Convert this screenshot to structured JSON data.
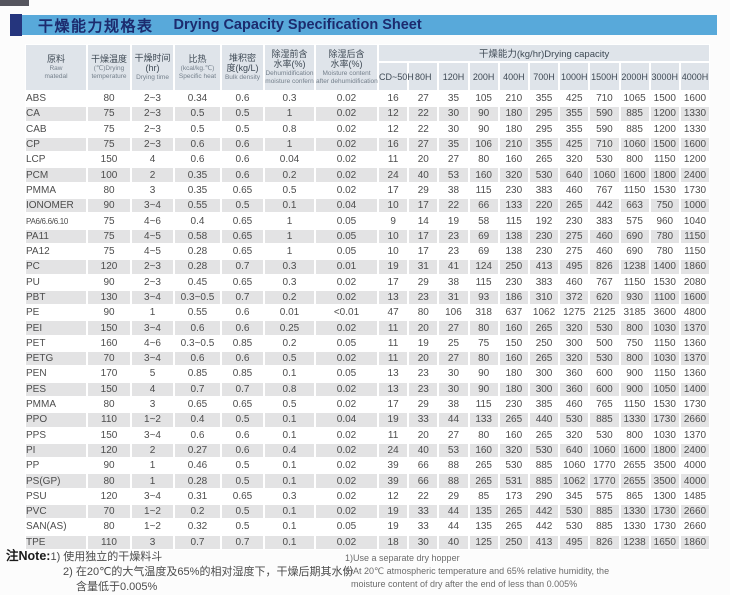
{
  "title": {
    "zh": "干燥能力规格表",
    "en": "Drying Capacity Specification Sheet"
  },
  "colors": {
    "title_bar_blue": "#58a9da",
    "title_block_navy": "#25357d",
    "title_text_navy": "#1c2b6e",
    "header_bg": "#dfe4ea",
    "row_stripe": "#e3e3e4",
    "body_text": "#4d4d4d"
  },
  "table": {
    "columns": {
      "material": {
        "zh": [
          "原料"
        ],
        "en": [
          "Raw",
          "matedal"
        ]
      },
      "temperature": {
        "zh": [
          "干燥温度"
        ],
        "en": [
          "(℃)Drying",
          "temperature"
        ]
      },
      "time": {
        "zh": [
          "干燥时间",
          "(hr)"
        ],
        "en": [
          "Drying time"
        ]
      },
      "specific_heat": {
        "zh": [
          "比热"
        ],
        "en": [
          "(kcal/kg.℃)",
          "Specific heat"
        ]
      },
      "bulk_density": {
        "zh": [
          "堆积密",
          "度(kg/L)"
        ],
        "en": [
          "Bulk density"
        ]
      },
      "moisture_before": {
        "zh": [
          "除湿前含",
          "水率(%)"
        ],
        "en": [
          "Dehumidification",
          "moisture confern"
        ]
      },
      "moisture_after": {
        "zh": [
          "除湿后含",
          "水率(%)"
        ],
        "en": [
          "Moisture content",
          "after dehumidification"
        ]
      }
    },
    "capacity_group_label": "干燥能力(kg/hr)Drying capacity",
    "capacity_columns": [
      "CD~50H",
      "80H",
      "120H",
      "200H",
      "400H",
      "700H",
      "1000H",
      "1500H",
      "2000H",
      "3000H",
      "4000H"
    ],
    "rows": [
      {
        "material": "ABS",
        "temp": "80",
        "time": "2~3",
        "specific_heat": "0.34",
        "bulk_density": "0.6",
        "moisture_before": "0.3",
        "moisture_after": "0.02",
        "capacities": [
          16,
          27,
          35,
          105,
          210,
          355,
          425,
          710,
          1065,
          1500,
          1600
        ]
      },
      {
        "material": "CA",
        "temp": "75",
        "time": "2~3",
        "specific_heat": "0.5",
        "bulk_density": "0.5",
        "moisture_before": "1",
        "moisture_after": "0.02",
        "capacities": [
          12,
          22,
          30,
          90,
          180,
          295,
          355,
          590,
          885,
          1200,
          1330
        ]
      },
      {
        "material": "CAB",
        "temp": "75",
        "time": "2~3",
        "specific_heat": "0.5",
        "bulk_density": "0.5",
        "moisture_before": "0.8",
        "moisture_after": "0.02",
        "capacities": [
          12,
          22,
          30,
          90,
          180,
          295,
          355,
          590,
          885,
          1200,
          1330
        ]
      },
      {
        "material": "CP",
        "temp": "75",
        "time": "2~3",
        "specific_heat": "0.6",
        "bulk_density": "0.6",
        "moisture_before": "1",
        "moisture_after": "0.02",
        "capacities": [
          16,
          27,
          35,
          106,
          210,
          355,
          425,
          710,
          1060,
          1500,
          1600
        ]
      },
      {
        "material": "LCP",
        "temp": "150",
        "time": "4",
        "specific_heat": "0.6",
        "bulk_density": "0.6",
        "moisture_before": "0.04",
        "moisture_after": "0.02",
        "capacities": [
          11,
          20,
          27,
          80,
          160,
          265,
          320,
          530,
          800,
          1150,
          1200
        ]
      },
      {
        "material": "PCM",
        "temp": "100",
        "time": "2",
        "specific_heat": "0.35",
        "bulk_density": "0.6",
        "moisture_before": "0.2",
        "moisture_after": "0.02",
        "capacities": [
          24,
          40,
          53,
          160,
          320,
          530,
          640,
          1060,
          1600,
          1800,
          2400
        ]
      },
      {
        "material": "PMMA",
        "temp": "80",
        "time": "3",
        "specific_heat": "0.35",
        "bulk_density": "0.65",
        "moisture_before": "0.5",
        "moisture_after": "0.02",
        "capacities": [
          17,
          29,
          38,
          115,
          230,
          383,
          460,
          767,
          1150,
          1530,
          1730
        ]
      },
      {
        "material": "IONOMER",
        "temp": "90",
        "time": "3~4",
        "specific_heat": "0.55",
        "bulk_density": "0.5",
        "moisture_before": "0.1",
        "moisture_after": "0.04",
        "capacities": [
          10,
          17,
          22,
          66,
          133,
          220,
          265,
          442,
          663,
          750,
          1000
        ]
      },
      {
        "material": "PA6/6.6/6.10",
        "temp": "75",
        "time": "4~6",
        "specific_heat": "0.4",
        "bulk_density": "0.65",
        "moisture_before": "1",
        "moisture_after": "0.05",
        "capacities": [
          9,
          14,
          19,
          58,
          115,
          192,
          230,
          383,
          575,
          960,
          1040
        ]
      },
      {
        "material": "PA11",
        "temp": "75",
        "time": "4~5",
        "specific_heat": "0.58",
        "bulk_density": "0.65",
        "moisture_before": "1",
        "moisture_after": "0.05",
        "capacities": [
          10,
          17,
          23,
          69,
          138,
          230,
          275,
          460,
          690,
          780,
          1150
        ]
      },
      {
        "material": "PA12",
        "temp": "75",
        "time": "4~5",
        "specific_heat": "0.28",
        "bulk_density": "0.65",
        "moisture_before": "1",
        "moisture_after": "0.05",
        "capacities": [
          10,
          17,
          23,
          69,
          138,
          230,
          275,
          460,
          690,
          780,
          1150
        ]
      },
      {
        "material": "PC",
        "temp": "120",
        "time": "2~3",
        "specific_heat": "0.28",
        "bulk_density": "0.7",
        "moisture_before": "0.3",
        "moisture_after": "0.01",
        "capacities": [
          19,
          31,
          41,
          124,
          250,
          413,
          495,
          826,
          1238,
          1400,
          1860
        ]
      },
      {
        "material": "PU",
        "temp": "90",
        "time": "2~3",
        "specific_heat": "0.45",
        "bulk_density": "0.65",
        "moisture_before": "0.3",
        "moisture_after": "0.02",
        "capacities": [
          17,
          29,
          38,
          115,
          230,
          383,
          460,
          767,
          1150,
          1530,
          2080
        ]
      },
      {
        "material": "PBT",
        "temp": "130",
        "time": "3~4",
        "specific_heat": "0.3~0.5",
        "bulk_density": "0.7",
        "moisture_before": "0.2",
        "moisture_after": "0.02",
        "capacities": [
          13,
          23,
          31,
          93,
          186,
          310,
          372,
          620,
          930,
          1100,
          1600
        ]
      },
      {
        "material": "PE",
        "temp": "90",
        "time": "1",
        "specific_heat": "0.55",
        "bulk_density": "0.6",
        "moisture_before": "0.01",
        "moisture_after": "<0.01",
        "capacities": [
          47,
          80,
          106,
          318,
          637,
          1062,
          1275,
          2125,
          3185,
          3600,
          4800
        ]
      },
      {
        "material": "PEI",
        "temp": "150",
        "time": "3~4",
        "specific_heat": "0.6",
        "bulk_density": "0.6",
        "moisture_before": "0.25",
        "moisture_after": "0.02",
        "capacities": [
          11,
          20,
          27,
          80,
          160,
          265,
          320,
          530,
          800,
          1030,
          1370
        ]
      },
      {
        "material": "PET",
        "temp": "160",
        "time": "4~6",
        "specific_heat": "0.3~0.5",
        "bulk_density": "0.85",
        "moisture_before": "0.2",
        "moisture_after": "0.05",
        "capacities": [
          11,
          19,
          25,
          75,
          150,
          250,
          300,
          500,
          750,
          1150,
          1360
        ]
      },
      {
        "material": "PETG",
        "temp": "70",
        "time": "3~4",
        "specific_heat": "0.6",
        "bulk_density": "0.6",
        "moisture_before": "0.5",
        "moisture_after": "0.02",
        "capacities": [
          11,
          20,
          27,
          80,
          160,
          265,
          320,
          530,
          800,
          1030,
          1370
        ]
      },
      {
        "material": "PEN",
        "temp": "170",
        "time": "5",
        "specific_heat": "0.85",
        "bulk_density": "0.85",
        "moisture_before": "0.1",
        "moisture_after": "0.05",
        "capacities": [
          13,
          23,
          30,
          90,
          180,
          300,
          360,
          600,
          900,
          1150,
          1360
        ]
      },
      {
        "material": "PES",
        "temp": "150",
        "time": "4",
        "specific_heat": "0.7",
        "bulk_density": "0.7",
        "moisture_before": "0.8",
        "moisture_after": "0.02",
        "capacities": [
          13,
          23,
          30,
          90,
          180,
          300,
          360,
          600,
          900,
          1050,
          1400
        ]
      },
      {
        "material": "PMMA",
        "temp": "80",
        "time": "3",
        "specific_heat": "0.65",
        "bulk_density": "0.65",
        "moisture_before": "0.5",
        "moisture_after": "0.02",
        "capacities": [
          17,
          29,
          38,
          115,
          230,
          385,
          460,
          765,
          1150,
          1530,
          1730
        ]
      },
      {
        "material": "PPO",
        "temp": "110",
        "time": "1~2",
        "specific_heat": "0.4",
        "bulk_density": "0.5",
        "moisture_before": "0.1",
        "moisture_after": "0.04",
        "capacities": [
          19,
          33,
          44,
          133,
          265,
          440,
          530,
          885,
          1330,
          1730,
          2660
        ]
      },
      {
        "material": "PPS",
        "temp": "150",
        "time": "3~4",
        "specific_heat": "0.6",
        "bulk_density": "0.6",
        "moisture_before": "0.1",
        "moisture_after": "0.02",
        "capacities": [
          11,
          20,
          27,
          80,
          160,
          265,
          320,
          530,
          800,
          1030,
          1370
        ]
      },
      {
        "material": "PI",
        "temp": "120",
        "time": "2",
        "specific_heat": "0.27",
        "bulk_density": "0.6",
        "moisture_before": "0.4",
        "moisture_after": "0.02",
        "capacities": [
          24,
          40,
          53,
          160,
          320,
          530,
          640,
          1060,
          1600,
          1800,
          2400
        ]
      },
      {
        "material": "PP",
        "temp": "90",
        "time": "1",
        "specific_heat": "0.46",
        "bulk_density": "0.5",
        "moisture_before": "0.1",
        "moisture_after": "0.02",
        "capacities": [
          39,
          66,
          88,
          265,
          530,
          885,
          1060,
          1770,
          2655,
          3500,
          4000
        ]
      },
      {
        "material": "PS(GP)",
        "temp": "80",
        "time": "1",
        "specific_heat": "0.28",
        "bulk_density": "0.5",
        "moisture_before": "0.1",
        "moisture_after": "0.02",
        "capacities": [
          39,
          66,
          88,
          265,
          531,
          885,
          1062,
          1770,
          2655,
          3500,
          4000
        ]
      },
      {
        "material": "PSU",
        "temp": "120",
        "time": "3~4",
        "specific_heat": "0.31",
        "bulk_density": "0.65",
        "moisture_before": "0.3",
        "moisture_after": "0.02",
        "capacities": [
          12,
          22,
          29,
          85,
          173,
          290,
          345,
          575,
          865,
          1300,
          1485
        ]
      },
      {
        "material": "PVC",
        "temp": "70",
        "time": "1~2",
        "specific_heat": "0.2",
        "bulk_density": "0.5",
        "moisture_before": "0.1",
        "moisture_after": "0.02",
        "capacities": [
          19,
          33,
          44,
          135,
          265,
          442,
          530,
          885,
          1330,
          1730,
          2660
        ]
      },
      {
        "material": "SAN(AS)",
        "temp": "80",
        "time": "1~2",
        "specific_heat": "0.32",
        "bulk_density": "0.5",
        "moisture_before": "0.1",
        "moisture_after": "0.05",
        "capacities": [
          19,
          33,
          44,
          135,
          265,
          442,
          530,
          885,
          1330,
          1730,
          2660
        ]
      },
      {
        "material": "TPE",
        "temp": "110",
        "time": "3",
        "specific_heat": "0.7",
        "bulk_density": "0.7",
        "moisture_before": "0.1",
        "moisture_after": "0.02",
        "capacities": [
          18,
          30,
          40,
          125,
          250,
          413,
          495,
          826,
          1238,
          1650,
          1860
        ]
      }
    ]
  },
  "notes": {
    "label": "注Note:",
    "zh": [
      "1) 使用独立的干燥料斗",
      "2) 在20℃的大气温度及65%的相对湿度下，干燥后期其水份",
      "含量低于0.005%"
    ],
    "en": [
      "1)Use a separate dry hopper",
      "2)At 20℃ atmospheric temperature and 65% relative humidity, the",
      "moisture content of dry after the end of less than 0.005%"
    ]
  }
}
